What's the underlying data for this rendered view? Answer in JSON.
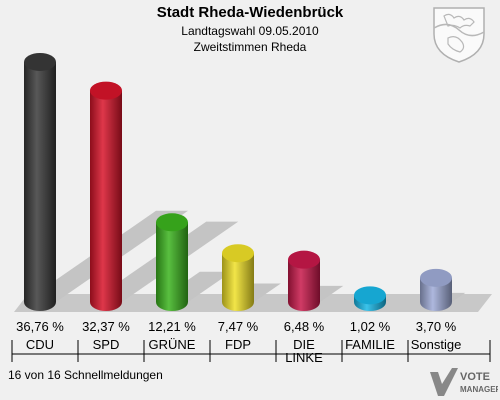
{
  "header": {
    "title": "Stadt Rheda-Wiedenbrück",
    "subtitle": "Landtagswahl 09.05.2010",
    "subtitle2": "Zweitstimmen Rheda"
  },
  "footer": {
    "text": "16 von 16 Schnellmeldungen"
  },
  "logo": {
    "line1": "VOTE",
    "line2": "MANAGER"
  },
  "chart_data": {
    "type": "bar",
    "title": "Stadt Rheda-Wiedenbrück",
    "categories": [
      "CDU",
      "SPD",
      "GRÜNE",
      "FDP",
      "DIE LINKE",
      "FAMILIE",
      "Sonstige"
    ],
    "category_lines": [
      [
        "CDU"
      ],
      [
        "SPD"
      ],
      [
        "GRÜNE"
      ],
      [
        "FDP"
      ],
      [
        "DIE",
        "LINKE"
      ],
      [
        "FAMILIE"
      ],
      [
        "Sonstige"
      ]
    ],
    "values": [
      36.76,
      32.37,
      12.21,
      7.47,
      6.48,
      1.02,
      3.7
    ],
    "value_labels": [
      "36,76 %",
      "32,37 %",
      "12,21 %",
      "7,47 %",
      "6,48 %",
      "1,02 %",
      "3,70 %"
    ],
    "colors": [
      "#3a3a3a",
      "#d8142a",
      "#3cb41e",
      "#f0e028",
      "#c8184a",
      "#18b8e8",
      "#a0acd8"
    ],
    "ylim": [
      0,
      37
    ]
  }
}
